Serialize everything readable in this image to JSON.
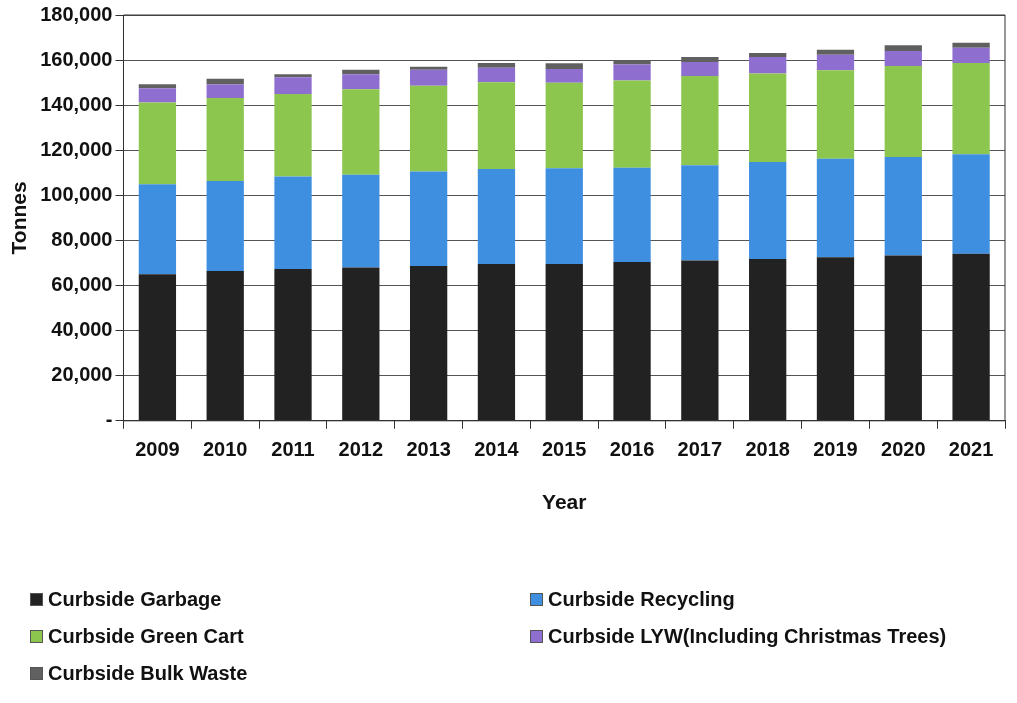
{
  "chart_data": {
    "type": "bar",
    "stacked": true,
    "xlabel": "Year",
    "ylabel": "Tonnes",
    "categories": [
      "2009",
      "2010",
      "2011",
      "2012",
      "2013",
      "2014",
      "2015",
      "2016",
      "2017",
      "2018",
      "2019",
      "2020",
      "2021"
    ],
    "series": [
      {
        "name": "Curbside Garbage",
        "color": "#222222",
        "values": [
          65000,
          66500,
          67300,
          68000,
          68700,
          69500,
          69500,
          70400,
          71100,
          71800,
          72600,
          73300,
          74100
        ]
      },
      {
        "name": "Curbside Recycling",
        "color": "#3f8fe0",
        "values": [
          39900,
          39900,
          41100,
          41100,
          41900,
          42200,
          42500,
          41800,
          42200,
          43000,
          43600,
          43700,
          44100
        ]
      },
      {
        "name": "Curbside Green Cart",
        "color": "#8dc64f",
        "values": [
          36300,
          36800,
          36600,
          38000,
          38000,
          38500,
          38000,
          38700,
          39600,
          39200,
          39300,
          40400,
          40500
        ]
      },
      {
        "name": "Curbside LYW(Including Christmas Trees)",
        "color": "#8e6fd0",
        "values": [
          6300,
          6000,
          7400,
          6600,
          7100,
          6400,
          6100,
          7100,
          6300,
          7400,
          6900,
          6600,
          6800
        ]
      },
      {
        "name": "Curbside Bulk Waste",
        "color": "#606060",
        "values": [
          1800,
          2500,
          1300,
          2000,
          1300,
          2100,
          2500,
          1900,
          2200,
          1800,
          2200,
          2600,
          2200
        ]
      }
    ],
    "ylim": [
      0,
      180000
    ],
    "yticks": [
      {
        "value": 0,
        "label": "-"
      },
      {
        "value": 20000,
        "label": "20,000"
      },
      {
        "value": 40000,
        "label": "40,000"
      },
      {
        "value": 60000,
        "label": "60,000"
      },
      {
        "value": 80000,
        "label": "80,000"
      },
      {
        "value": 100000,
        "label": "100,000"
      },
      {
        "value": 120000,
        "label": "120,000"
      },
      {
        "value": 140000,
        "label": "140,000"
      },
      {
        "value": 160000,
        "label": "160,000"
      },
      {
        "value": 180000,
        "label": "180,000"
      }
    ],
    "grid": "y",
    "legend": "bottom"
  }
}
